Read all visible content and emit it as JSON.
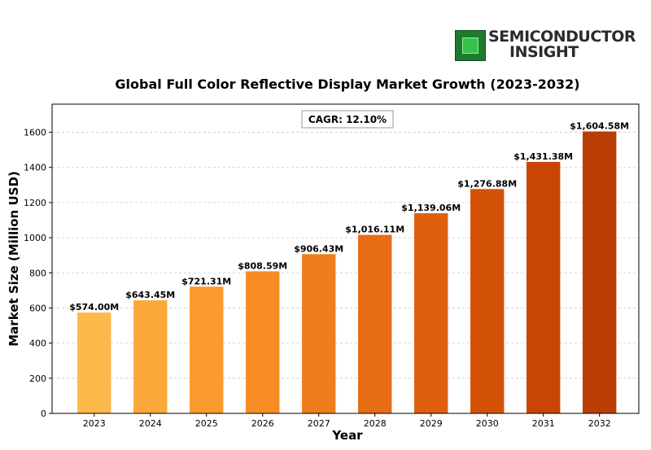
{
  "logo": {
    "line1": "SEMICONDUCTOR",
    "line2": "INSIGHT"
  },
  "chart_data": {
    "type": "bar",
    "title": "Global Full Color Reflective Display Market Growth (2023-2032)",
    "xlabel": "Year",
    "ylabel": "Market Size (Million USD)",
    "categories": [
      "2023",
      "2024",
      "2025",
      "2026",
      "2027",
      "2028",
      "2029",
      "2030",
      "2031",
      "2032"
    ],
    "values": [
      574.0,
      643.45,
      721.31,
      808.59,
      906.43,
      1016.11,
      1139.06,
      1276.88,
      1431.38,
      1604.58
    ],
    "data_labels": [
      "$574.00M",
      "$643.45M",
      "$721.31M",
      "$808.59M",
      "$906.43M",
      "$1,016.11M",
      "$1,139.06M",
      "$1,276.88M",
      "$1,431.38M",
      "$1,604.58M"
    ],
    "ylim": [
      0,
      1760
    ],
    "yticks": [
      0,
      200,
      400,
      600,
      800,
      1000,
      1200,
      1400,
      1600
    ],
    "grid": true,
    "annotation": "CAGR: 12.10%",
    "bar_colors": [
      "#fdb94a",
      "#fca93b",
      "#fb9a2e",
      "#f78c24",
      "#f07d1c",
      "#e76d14",
      "#de5f0d",
      "#d35208",
      "#c94505",
      "#ba3e06"
    ]
  }
}
